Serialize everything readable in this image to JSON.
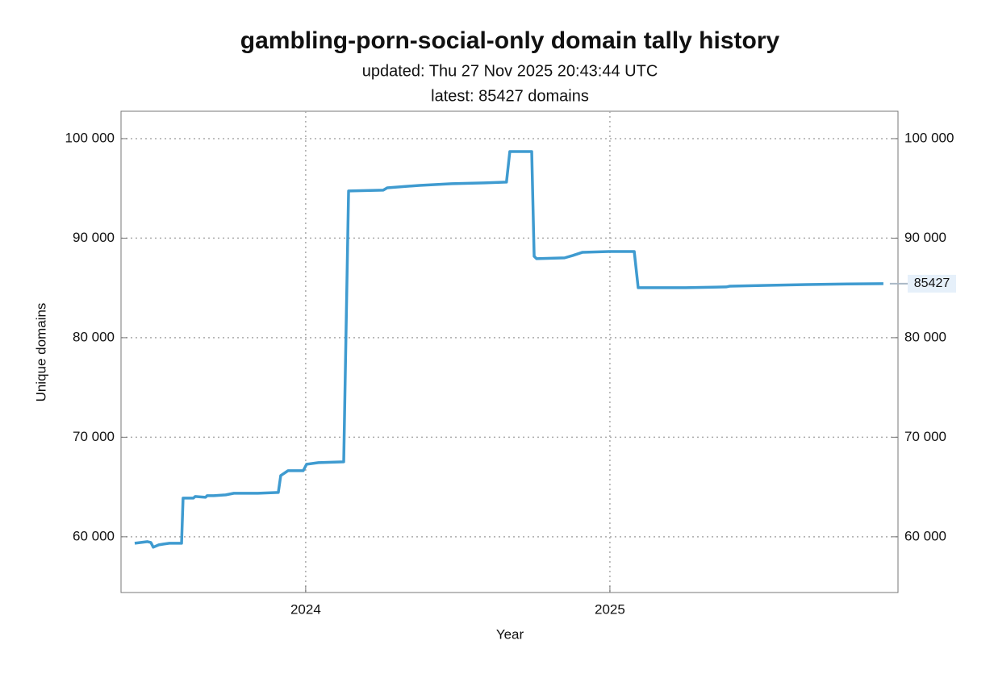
{
  "chart_data": {
    "type": "line",
    "title": "gambling-porn-social-only domain tally history",
    "subtitle": "updated: Thu 27 Nov 2025 20:43:44 UTC",
    "annotation": "latest: 85427 domains",
    "xlabel": "Year",
    "ylabel": "Unique domains",
    "xlim": [
      2023.393,
      2025.947
    ],
    "xticks": [
      2024,
      2025
    ],
    "ylim": [
      54400,
      102750
    ],
    "yticks": [
      {
        "value": 60000,
        "label": "60 000"
      },
      {
        "value": 70000,
        "label": "70 000"
      },
      {
        "value": 80000,
        "label": "80 000"
      },
      {
        "value": 90000,
        "label": "90 000"
      },
      {
        "value": 100000,
        "label": "100 000"
      }
    ],
    "grid": true,
    "series": [
      {
        "color": "#3f9bd0",
        "x": [
          2023.438,
          2023.48,
          2023.491,
          2023.499,
          2023.517,
          2023.533,
          2023.552,
          2023.592,
          2023.597,
          2023.631,
          2023.637,
          2023.671,
          2023.676,
          2023.698,
          2023.737,
          2023.764,
          2023.843,
          2023.91,
          2023.918,
          2023.942,
          2023.992,
          2024.003,
          2024.042,
          2024.125,
          2024.141,
          2024.255,
          2024.268,
          2024.374,
          2024.48,
          2024.586,
          2024.66,
          2024.671,
          2024.743,
          2024.751,
          2024.759,
          2024.851,
          2024.878,
          2024.91,
          2024.997,
          2025.08,
          2025.093,
          2025.249,
          2025.382,
          2025.395,
          2025.515,
          2025.647,
          2025.78,
          2025.899
        ],
        "values": [
          59350,
          59510,
          59430,
          58950,
          59190,
          59270,
          59350,
          59350,
          63890,
          63890,
          64050,
          63970,
          64130,
          64130,
          64210,
          64370,
          64370,
          64450,
          66150,
          66640,
          66640,
          67290,
          67450,
          67530,
          94740,
          94820,
          95060,
          95300,
          95470,
          95550,
          95630,
          98700,
          98700,
          88180,
          87940,
          88020,
          88260,
          88580,
          88660,
          88660,
          85020,
          85020,
          85100,
          85180,
          85260,
          85340,
          85400,
          85427
        ]
      }
    ]
  }
}
